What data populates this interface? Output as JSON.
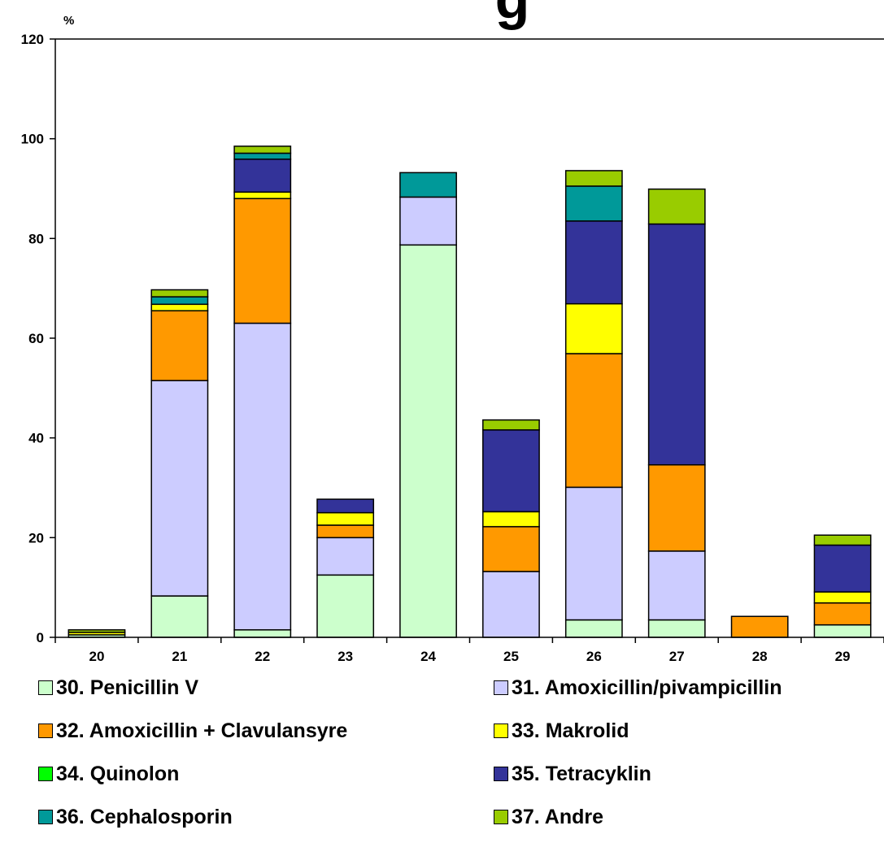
{
  "chart_data": {
    "type": "bar",
    "stacked": true,
    "title": "g",
    "ylabel": "%",
    "xlabel": "",
    "ylim": [
      0,
      120
    ],
    "y_ticks": [
      "0",
      "20",
      "40",
      "60",
      "80",
      "100",
      "120"
    ],
    "categories": [
      "20",
      "21",
      "22",
      "23",
      "24",
      "25",
      "26",
      "27",
      "28",
      "29"
    ],
    "grid": false,
    "legend_position": "bottom",
    "series": [
      {
        "name": "30. Penicillin V",
        "color": "#ccffcc",
        "values": [
          0.5,
          8.3,
          1.5,
          12.5,
          78.7,
          0,
          3.5,
          3.5,
          0,
          2.5
        ]
      },
      {
        "name": "31. Amoxicillin/pivampicillin",
        "color": "#ccccff",
        "values": [
          0,
          43.2,
          61.5,
          7.5,
          9.6,
          13.2,
          26.6,
          13.8,
          0,
          0
        ]
      },
      {
        "name": "32. Amoxicillin + Clavulansyre",
        "color": "#ff9900",
        "values": [
          0,
          14.0,
          25.0,
          2.5,
          0,
          9.0,
          26.8,
          17.3,
          4.2,
          4.4
        ]
      },
      {
        "name": "33. Makrolid",
        "color": "#ffff00",
        "values": [
          0.5,
          1.3,
          1.3,
          2.5,
          0,
          3.0,
          10.0,
          0,
          0,
          2.2
        ]
      },
      {
        "name": "34. Quinolon",
        "color": "#00ff00",
        "values": [
          0,
          0,
          0,
          0,
          0,
          0,
          0,
          0,
          0,
          0
        ]
      },
      {
        "name": "35. Tetracyklin",
        "color": "#333399",
        "values": [
          0,
          0,
          6.6,
          2.7,
          0,
          16.4,
          16.6,
          48.3,
          0,
          9.4
        ]
      },
      {
        "name": "36. Cephalosporin",
        "color": "#009999",
        "values": [
          0,
          1.5,
          1.2,
          0,
          4.9,
          0,
          7.0,
          0,
          0,
          0
        ]
      },
      {
        "name": "37. Andre",
        "color": "#99cc00",
        "values": [
          0.5,
          1.4,
          1.4,
          0,
          0,
          2.0,
          3.1,
          7.0,
          0,
          2.0
        ]
      }
    ]
  }
}
